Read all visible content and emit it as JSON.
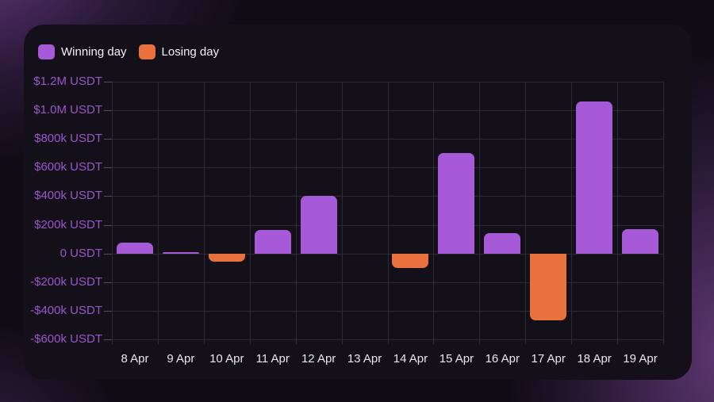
{
  "card": {
    "legend": [
      {
        "label": "Winning day",
        "key": "winning"
      },
      {
        "label": "Losing day",
        "key": "losing"
      }
    ]
  },
  "chart_data": {
    "type": "bar",
    "title": "",
    "xlabel": "",
    "ylabel": "",
    "categories": [
      "8 Apr",
      "9 Apr",
      "10 Apr",
      "11 Apr",
      "12 Apr",
      "13 Apr",
      "14 Apr",
      "15 Apr",
      "16 Apr",
      "17 Apr",
      "18 Apr",
      "19 Apr"
    ],
    "values": [
      75000,
      8000,
      -60000,
      165000,
      400000,
      0,
      -100000,
      700000,
      140000,
      -465000,
      1060000,
      170000
    ],
    "series_rule": "positive bars = Winning day (purple), negative bars = Losing day (orange); 13 Apr has no bar",
    "y_tick_labels": [
      "$1.2M USDT",
      "$1.0M USDT",
      "$800k USDT",
      "$600k USDT",
      "$400k USDT",
      "$200k USDT",
      "0 USDT",
      "-$200k USDT",
      "-$400k USDT",
      "-$600k USDT"
    ],
    "y_tick_values": [
      1200000,
      1000000,
      800000,
      600000,
      400000,
      200000,
      0,
      -200000,
      -400000,
      -600000
    ],
    "ylim": [
      -600000,
      1200000
    ],
    "grid": true,
    "legend": [
      "Winning day",
      "Losing day"
    ],
    "legend_position": "top-left",
    "colors": {
      "winning": "#a75ad8",
      "losing": "#e8713e",
      "y_label": "#9c55cb",
      "x_label": "#e9e7ed",
      "grid": "#2d2a34",
      "card_background": "#131019"
    }
  }
}
